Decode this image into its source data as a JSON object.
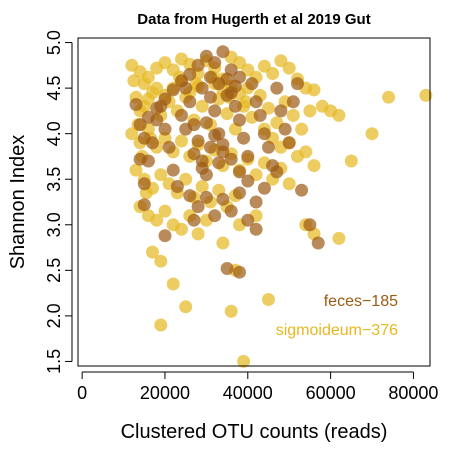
{
  "chart_data": {
    "type": "scatter",
    "title": "Data from Hugerth et al 2019 Gut",
    "xlabel": "Clustered OTU counts (reads)",
    "ylabel": "Shannon Index",
    "xlim": [
      -1000,
      84000
    ],
    "ylim": [
      1.45,
      5.05
    ],
    "x_ticks": [
      0,
      20000,
      40000,
      60000,
      80000
    ],
    "x_tick_labels": [
      "0",
      "20000",
      "40000",
      "60000",
      "80000"
    ],
    "y_ticks": [
      1.5,
      2.0,
      2.5,
      3.0,
      3.5,
      4.0,
      4.5,
      5.0
    ],
    "y_tick_labels": [
      "1.5",
      "2.0",
      "2.5",
      "3.0",
      "3.5",
      "4.0",
      "4.5",
      "5.0"
    ],
    "grid": false,
    "legend_position": "bottom-right",
    "series": [
      {
        "name": "sigmoideum−376",
        "color": "#E6B820",
        "points": [
          [
            12000,
            4.75
          ],
          [
            14000,
            4.68
          ],
          [
            15000,
            4.55
          ],
          [
            16000,
            4.62
          ],
          [
            18000,
            4.72
          ],
          [
            20000,
            4.78
          ],
          [
            22000,
            4.7
          ],
          [
            24000,
            4.82
          ],
          [
            26000,
            4.76
          ],
          [
            28000,
            4.66
          ],
          [
            30000,
            4.8
          ],
          [
            32000,
            4.72
          ],
          [
            34000,
            4.6
          ],
          [
            36000,
            4.84
          ],
          [
            38000,
            4.78
          ],
          [
            40000,
            4.7
          ],
          [
            42000,
            4.62
          ],
          [
            44000,
            4.74
          ],
          [
            46000,
            4.66
          ],
          [
            48000,
            4.8
          ],
          [
            50000,
            4.72
          ],
          [
            52000,
            4.6
          ],
          [
            54000,
            4.5
          ],
          [
            56000,
            4.48
          ],
          [
            58000,
            4.3
          ],
          [
            60000,
            4.25
          ],
          [
            62000,
            4.2
          ],
          [
            70000,
            4.0
          ],
          [
            74000,
            4.4
          ],
          [
            83000,
            4.42
          ],
          [
            13000,
            4.4
          ],
          [
            15000,
            4.3
          ],
          [
            17000,
            4.45
          ],
          [
            19000,
            4.2
          ],
          [
            21000,
            4.35
          ],
          [
            23000,
            4.25
          ],
          [
            25000,
            4.4
          ],
          [
            27000,
            4.15
          ],
          [
            29000,
            4.3
          ],
          [
            31000,
            4.1
          ],
          [
            33000,
            4.38
          ],
          [
            35000,
            4.22
          ],
          [
            37000,
            4.05
          ],
          [
            39000,
            4.3
          ],
          [
            41000,
            4.18
          ],
          [
            43000,
            4.42
          ],
          [
            45000,
            4.28
          ],
          [
            47000,
            4.12
          ],
          [
            49000,
            4.35
          ],
          [
            51000,
            4.2
          ],
          [
            53000,
            4.05
          ],
          [
            55000,
            4.25
          ],
          [
            12000,
            4.0
          ],
          [
            14000,
            3.9
          ],
          [
            16000,
            4.05
          ],
          [
            18000,
            3.85
          ],
          [
            20000,
            3.95
          ],
          [
            22000,
            3.8
          ],
          [
            24000,
            3.92
          ],
          [
            26000,
            3.75
          ],
          [
            28000,
            3.88
          ],
          [
            30000,
            3.7
          ],
          [
            32000,
            3.82
          ],
          [
            34000,
            3.65
          ],
          [
            36000,
            3.78
          ],
          [
            38000,
            3.6
          ],
          [
            40000,
            3.72
          ],
          [
            42000,
            3.55
          ],
          [
            44000,
            3.68
          ],
          [
            46000,
            3.5
          ],
          [
            48000,
            3.62
          ],
          [
            50000,
            3.45
          ],
          [
            13000,
            3.6
          ],
          [
            15000,
            3.5
          ],
          [
            17000,
            3.4
          ],
          [
            19000,
            3.55
          ],
          [
            21000,
            3.45
          ],
          [
            23000,
            3.35
          ],
          [
            25000,
            3.5
          ],
          [
            27000,
            3.3
          ],
          [
            29000,
            3.42
          ],
          [
            31000,
            3.25
          ],
          [
            33000,
            3.38
          ],
          [
            35000,
            3.2
          ],
          [
            37000,
            3.32
          ],
          [
            14000,
            3.2
          ],
          [
            16000,
            3.1
          ],
          [
            18000,
            3.05
          ],
          [
            20000,
            3.15
          ],
          [
            22000,
            3.0
          ],
          [
            24000,
            2.95
          ],
          [
            26000,
            3.1
          ],
          [
            28000,
            2.9
          ],
          [
            30000,
            3.05
          ],
          [
            34000,
            2.8
          ],
          [
            38000,
            3.0
          ],
          [
            42000,
            3.1
          ],
          [
            54000,
            3.0
          ],
          [
            56000,
            2.9
          ],
          [
            62000,
            2.85
          ],
          [
            65000,
            3.7
          ],
          [
            17000,
            2.7
          ],
          [
            19000,
            2.6
          ],
          [
            22000,
            2.35
          ],
          [
            25000,
            2.1
          ],
          [
            19000,
            1.9
          ],
          [
            36000,
            2.05
          ],
          [
            45000,
            2.18
          ],
          [
            39000,
            1.5
          ],
          [
            37000,
            2.5
          ],
          [
            32000,
            4.55
          ],
          [
            34000,
            4.48
          ],
          [
            36000,
            4.52
          ],
          [
            38000,
            4.44
          ],
          [
            40000,
            4.5
          ],
          [
            28000,
            4.52
          ],
          [
            26000,
            4.45
          ],
          [
            24000,
            4.58
          ],
          [
            22000,
            4.5
          ],
          [
            20000,
            4.42
          ],
          [
            18000,
            4.5
          ],
          [
            16000,
            4.38
          ],
          [
            14000,
            4.25
          ],
          [
            44000,
            4.05
          ],
          [
            46000,
            3.95
          ],
          [
            48000,
            3.85
          ],
          [
            50000,
            3.9
          ],
          [
            52000,
            3.75
          ],
          [
            54000,
            3.8
          ],
          [
            56000,
            3.65
          ],
          [
            12500,
            4.58
          ],
          [
            13500,
            4.1
          ],
          [
            14500,
            3.75
          ],
          [
            15500,
            3.35
          ],
          [
            16500,
            3.95
          ],
          [
            23500,
            4.62
          ],
          [
            27500,
            4.55
          ],
          [
            31500,
            4.62
          ],
          [
            35500,
            4.4
          ],
          [
            39500,
            4.35
          ]
        ]
      },
      {
        "name": "feces−185",
        "color": "#9C5A14",
        "points": [
          [
            13000,
            4.32
          ],
          [
            14000,
            4.1
          ],
          [
            15000,
            3.95
          ],
          [
            14000,
            3.72
          ],
          [
            16000,
            3.7
          ],
          [
            15000,
            3.45
          ],
          [
            17000,
            3.9
          ],
          [
            18000,
            4.15
          ],
          [
            19000,
            4.3
          ],
          [
            20000,
            4.05
          ],
          [
            21000,
            3.85
          ],
          [
            22000,
            3.6
          ],
          [
            23000,
            3.42
          ],
          [
            24000,
            4.2
          ],
          [
            25000,
            4.5
          ],
          [
            26000,
            4.35
          ],
          [
            27000,
            4.1
          ],
          [
            28000,
            3.92
          ],
          [
            29000,
            3.7
          ],
          [
            30000,
            3.55
          ],
          [
            31000,
            4.4
          ],
          [
            32000,
            4.25
          ],
          [
            33000,
            4.0
          ],
          [
            34000,
            3.8
          ],
          [
            35000,
            4.6
          ],
          [
            36000,
            4.45
          ],
          [
            37000,
            4.3
          ],
          [
            38000,
            4.15
          ],
          [
            39000,
            3.95
          ],
          [
            40000,
            3.75
          ],
          [
            41000,
            4.55
          ],
          [
            42000,
            4.35
          ],
          [
            43000,
            4.2
          ],
          [
            44000,
            4.0
          ],
          [
            45000,
            3.85
          ],
          [
            46000,
            3.65
          ],
          [
            47000,
            4.5
          ],
          [
            48000,
            4.25
          ],
          [
            49000,
            4.05
          ],
          [
            50000,
            3.9
          ],
          [
            51000,
            4.35
          ],
          [
            52000,
            4.55
          ],
          [
            28000,
            4.75
          ],
          [
            30000,
            4.85
          ],
          [
            32000,
            4.78
          ],
          [
            34000,
            4.9
          ],
          [
            36000,
            4.7
          ],
          [
            38000,
            4.62
          ],
          [
            26000,
            4.65
          ],
          [
            24000,
            4.58
          ],
          [
            22000,
            4.48
          ],
          [
            20000,
            4.38
          ],
          [
            18000,
            4.28
          ],
          [
            16000,
            4.18
          ],
          [
            30000,
            4.12
          ],
          [
            32000,
            3.98
          ],
          [
            34000,
            3.88
          ],
          [
            36000,
            3.72
          ],
          [
            38000,
            3.58
          ],
          [
            40000,
            3.48
          ],
          [
            26000,
            3.32
          ],
          [
            28000,
            3.2
          ],
          [
            30000,
            3.3
          ],
          [
            32000,
            3.1
          ],
          [
            34000,
            3.28
          ],
          [
            36000,
            3.15
          ],
          [
            38000,
            3.35
          ],
          [
            40000,
            3.05
          ],
          [
            42000,
            3.25
          ],
          [
            44000,
            3.4
          ],
          [
            15000,
            3.22
          ],
          [
            20000,
            2.88
          ],
          [
            35000,
            2.52
          ],
          [
            38000,
            2.48
          ],
          [
            42000,
            2.95
          ],
          [
            53000,
            3.38
          ],
          [
            55000,
            3.0
          ],
          [
            57000,
            2.8
          ],
          [
            47000,
            3.58
          ],
          [
            27000,
            3.05
          ],
          [
            29000,
            4.5
          ],
          [
            31000,
            4.62
          ],
          [
            33000,
            4.55
          ],
          [
            35000,
            4.42
          ],
          [
            37000,
            4.52
          ],
          [
            25000,
            4.05
          ],
          [
            27000,
            3.78
          ],
          [
            29000,
            3.62
          ],
          [
            31000,
            3.85
          ],
          [
            33000,
            3.68
          ]
        ]
      }
    ]
  }
}
